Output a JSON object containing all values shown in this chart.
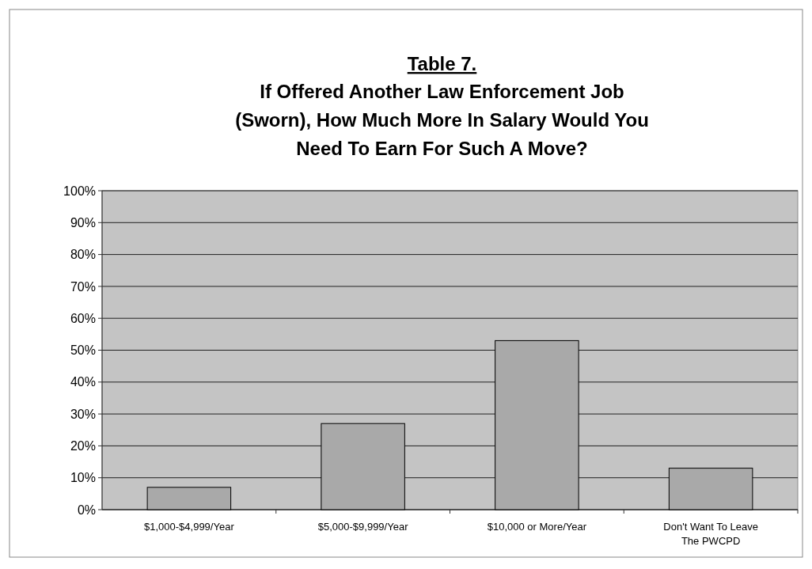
{
  "chart_data": {
    "type": "bar",
    "title": "Table 7.",
    "subtitle": "If Offered Another Law Enforcement Job (Sworn), How Much More In Salary Would You Need To Earn For Such A Move?",
    "categories": [
      "$1,000-$4,999/Year",
      "$5,000-$9,999/Year",
      "$10,000 or More/Year",
      "Don't Want To Leave The PWCPD"
    ],
    "values": [
      7,
      27,
      53,
      13
    ],
    "color": "#a9a9a9",
    "ylim": [
      0,
      100
    ],
    "yticks": [
      {
        "value": 0,
        "label": "0%"
      },
      {
        "value": 10,
        "label": "10%"
      },
      {
        "value": 20,
        "label": "20%"
      },
      {
        "value": 30,
        "label": "30%"
      },
      {
        "value": 40,
        "label": "40%"
      },
      {
        "value": 50,
        "label": "50%"
      },
      {
        "value": 60,
        "label": "60%"
      },
      {
        "value": 70,
        "label": "70%"
      },
      {
        "value": 80,
        "label": "80%"
      },
      {
        "value": 90,
        "label": "90%"
      },
      {
        "value": 100,
        "label": "100%"
      }
    ],
    "grid": "y"
  }
}
